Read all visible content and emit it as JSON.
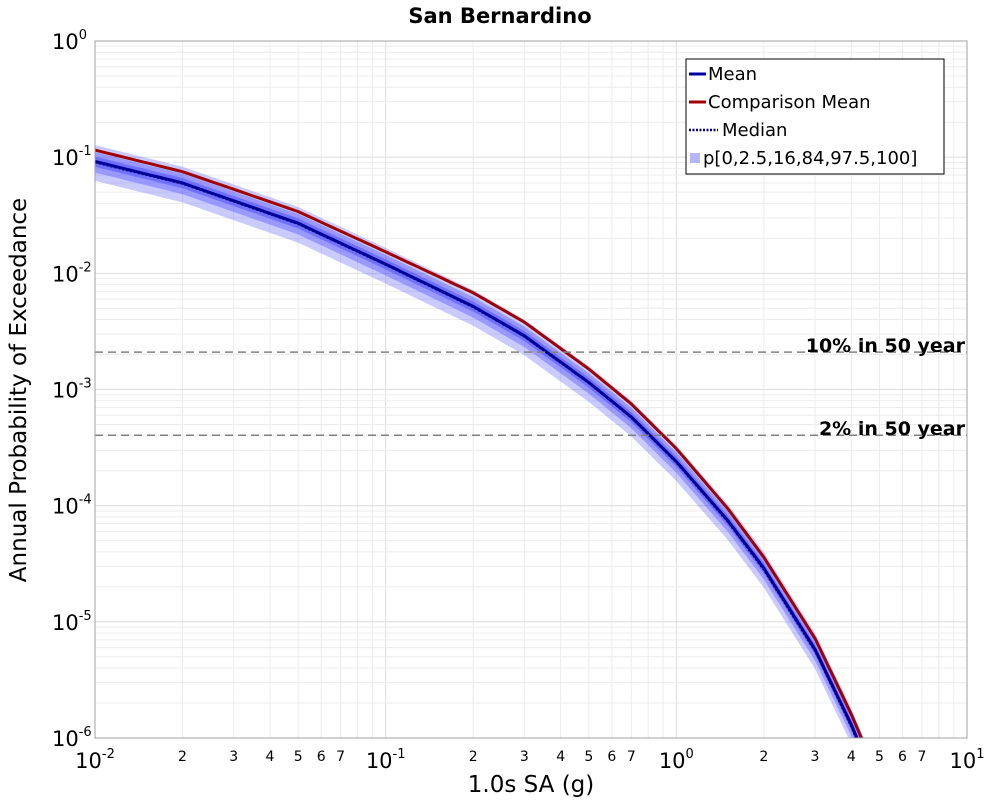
{
  "chart_data": {
    "type": "line",
    "title": "San Bernardino",
    "xlabel": "1.0s SA (g)",
    "ylabel": "Annual Probability of Exceedance",
    "x_scale": "log",
    "y_scale": "log",
    "xlim": [
      0.01,
      10
    ],
    "ylim": [
      1e-06,
      1
    ],
    "grid": true,
    "legend_position": "top-right",
    "x_major_ticks": [
      {
        "value": 0.01,
        "base": "10",
        "exp": "-2"
      },
      {
        "value": 0.1,
        "base": "10",
        "exp": "-1"
      },
      {
        "value": 1,
        "base": "10",
        "exp": "0"
      },
      {
        "value": 10,
        "base": "10",
        "exp": "1"
      }
    ],
    "x_minor_tick_labels": [
      "2",
      "3",
      "4",
      "5",
      "6",
      "7"
    ],
    "y_major_ticks": [
      {
        "value": 1,
        "base": "10",
        "exp": "0"
      },
      {
        "value": 0.1,
        "base": "10",
        "exp": "-1"
      },
      {
        "value": 0.01,
        "base": "10",
        "exp": "-2"
      },
      {
        "value": 0.001,
        "base": "10",
        "exp": "-3"
      },
      {
        "value": 0.0001,
        "base": "10",
        "exp": "-4"
      },
      {
        "value": 1e-05,
        "base": "10",
        "exp": "-5"
      },
      {
        "value": 1e-06,
        "base": "10",
        "exp": "-6"
      }
    ],
    "x": [
      0.01,
      0.02,
      0.05,
      0.1,
      0.2,
      0.3,
      0.5,
      0.7,
      1.0,
      1.5,
      2.0,
      3.0,
      4.0,
      4.5
    ],
    "series": [
      {
        "name": "Mean",
        "color": "#0000a0",
        "style": "solid",
        "values": [
          0.092,
          0.06,
          0.027,
          0.012,
          0.0052,
          0.0029,
          0.00115,
          0.00058,
          0.00024,
          7.5e-05,
          2.9e-05,
          5.8e-06,
          1.3e-06,
          6.5e-07
        ]
      },
      {
        "name": "Comparison Mean",
        "color": "#a00000",
        "style": "solid",
        "values": [
          0.115,
          0.075,
          0.034,
          0.0153,
          0.0068,
          0.0038,
          0.0015,
          0.00075,
          0.00031,
          9.5e-05,
          3.6e-05,
          7.2e-06,
          1.6e-06,
          8e-07
        ]
      },
      {
        "name": "Median",
        "color": "#000080",
        "style": "dotted",
        "values": [
          0.09,
          0.059,
          0.0265,
          0.0118,
          0.0051,
          0.00285,
          0.00113,
          0.00057,
          0.000235,
          7.3e-05,
          2.8e-05,
          5.6e-06,
          1.25e-06,
          6.2e-07
        ]
      }
    ],
    "bands": {
      "name": "p[0,2.5,16,84,97.5,100]",
      "color": "#5050ff",
      "outer_factor_low": 0.68,
      "outer_factor_high": 1.38,
      "mid_factor_low": 0.8,
      "mid_factor_high": 1.2,
      "inner_factor_low": 0.9,
      "inner_factor_high": 1.1
    },
    "reference_lines": [
      {
        "label": "10% in 50 year",
        "y": 0.0021,
        "color": "#808080",
        "style": "dashed"
      },
      {
        "label": "2% in 50 year",
        "y": 0.000404,
        "color": "#808080",
        "style": "dashed"
      }
    ],
    "legend": [
      {
        "label": "Mean",
        "kind": "line",
        "color": "#0000a0",
        "style": "solid"
      },
      {
        "label": "Comparison Mean",
        "kind": "line",
        "color": "#a00000",
        "style": "solid"
      },
      {
        "label": "Median",
        "kind": "line",
        "color": "#000080",
        "style": "dotted"
      },
      {
        "label": "p[0,2.5,16,84,97.5,100]",
        "kind": "band",
        "color": "#b4b4ff"
      }
    ]
  }
}
